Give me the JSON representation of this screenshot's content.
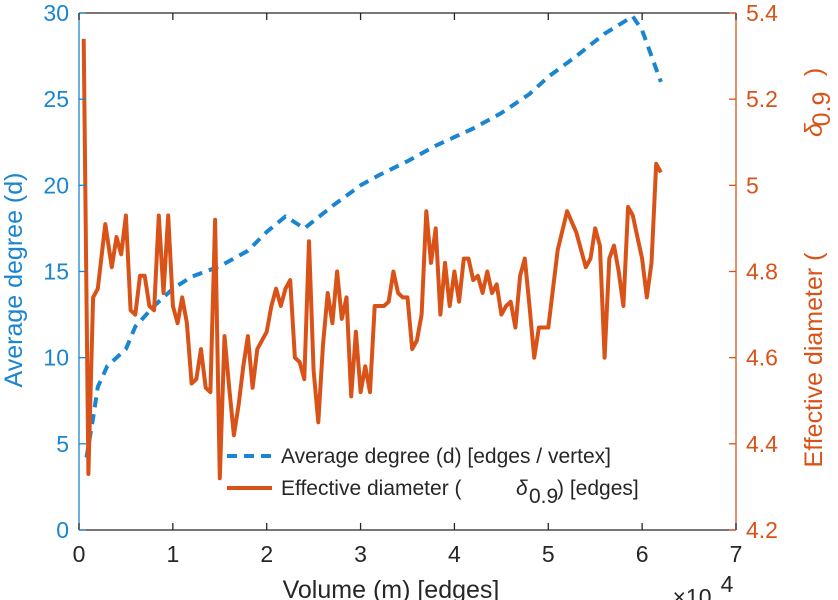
{
  "chart_data": {
    "type": "line",
    "xlabel": "Volume (m) [edges]",
    "x_exponent_label": "×10",
    "x_exponent_power": "4",
    "xlim": [
      0,
      7
    ],
    "x_ticks": [
      "0",
      "1",
      "2",
      "3",
      "4",
      "5",
      "6",
      "7"
    ],
    "left_axis": {
      "label": "Average degree (d)",
      "ylim": [
        0,
        30
      ],
      "ticks": [
        "0",
        "5",
        "10",
        "15",
        "20",
        "25",
        "30"
      ],
      "color": "#1a85d0"
    },
    "right_axis": {
      "label": "Effective diameter (",
      "label_symbol": "δ",
      "label_subscript": "0.9",
      "label_close": ")",
      "ylim": [
        4.2,
        5.4
      ],
      "ticks": [
        "4.2",
        "4.4",
        "4.6",
        "4.8",
        "5",
        "5.2",
        "5.4"
      ],
      "color": "#d95319"
    },
    "series": [
      {
        "name": "Average degree (d) [edges / vertex]",
        "axis": "left",
        "style": "dashed",
        "color": "#1a85d0",
        "x": [
          0.08,
          0.15,
          0.2,
          0.3,
          0.4,
          0.5,
          0.6,
          0.8,
          1.0,
          1.2,
          1.5,
          1.8,
          2.0,
          2.2,
          2.4,
          2.7,
          3.0,
          3.2,
          3.5,
          3.8,
          4.0,
          4.2,
          4.5,
          4.8,
          5.0,
          5.3,
          5.6,
          5.9,
          6.0,
          6.2
        ],
        "values": [
          4.2,
          6.5,
          8.3,
          9.5,
          10.0,
          10.5,
          11.8,
          13.0,
          14.0,
          14.7,
          15.3,
          16.2,
          17.3,
          18.2,
          17.5,
          18.8,
          20.0,
          20.6,
          21.4,
          22.3,
          22.8,
          23.3,
          24.2,
          25.3,
          26.3,
          27.5,
          28.8,
          29.8,
          29.0,
          26.0
        ]
      },
      {
        "name": "Effective diameter (",
        "name_symbol": "δ",
        "name_subscript": "0.9",
        "name_suffix": ") [edges]",
        "axis": "right",
        "style": "solid",
        "color": "#d95319",
        "x": [
          0.05,
          0.1,
          0.15,
          0.2,
          0.28,
          0.35,
          0.4,
          0.45,
          0.5,
          0.55,
          0.6,
          0.65,
          0.7,
          0.75,
          0.8,
          0.85,
          0.9,
          0.95,
          1.0,
          1.05,
          1.1,
          1.15,
          1.2,
          1.25,
          1.3,
          1.35,
          1.4,
          1.45,
          1.5,
          1.55,
          1.6,
          1.65,
          1.7,
          1.75,
          1.8,
          1.85,
          1.9,
          1.95,
          2.0,
          2.05,
          2.1,
          2.15,
          2.2,
          2.25,
          2.3,
          2.35,
          2.4,
          2.45,
          2.5,
          2.55,
          2.6,
          2.65,
          2.7,
          2.75,
          2.8,
          2.85,
          2.9,
          2.95,
          3.0,
          3.05,
          3.1,
          3.15,
          3.2,
          3.25,
          3.3,
          3.35,
          3.4,
          3.45,
          3.5,
          3.55,
          3.6,
          3.65,
          3.7,
          3.75,
          3.8,
          3.85,
          3.9,
          3.95,
          4.0,
          4.05,
          4.1,
          4.15,
          4.2,
          4.25,
          4.3,
          4.35,
          4.4,
          4.45,
          4.5,
          4.55,
          4.6,
          4.65,
          4.7,
          4.75,
          4.8,
          4.85,
          4.9,
          5.0,
          5.1,
          5.2,
          5.3,
          5.35,
          5.4,
          5.45,
          5.5,
          5.55,
          5.6,
          5.65,
          5.7,
          5.75,
          5.8,
          5.85,
          5.9,
          5.95,
          6.0,
          6.05,
          6.1,
          6.15,
          6.2
        ],
        "values": [
          5.34,
          4.33,
          4.74,
          4.76,
          4.91,
          4.81,
          4.88,
          4.84,
          4.93,
          4.71,
          4.7,
          4.79,
          4.79,
          4.72,
          4.71,
          4.93,
          4.75,
          4.93,
          4.72,
          4.68,
          4.74,
          4.68,
          4.54,
          4.55,
          4.62,
          4.53,
          4.52,
          4.92,
          4.32,
          4.65,
          4.53,
          4.42,
          4.49,
          4.58,
          4.65,
          4.53,
          4.62,
          4.64,
          4.66,
          4.72,
          4.76,
          4.72,
          4.76,
          4.78,
          4.6,
          4.59,
          4.55,
          4.87,
          4.57,
          4.45,
          4.63,
          4.75,
          4.68,
          4.8,
          4.69,
          4.74,
          4.51,
          4.66,
          4.52,
          4.58,
          4.52,
          4.72,
          4.72,
          4.72,
          4.73,
          4.8,
          4.75,
          4.74,
          4.74,
          4.62,
          4.64,
          4.7,
          4.94,
          4.82,
          4.9,
          4.7,
          4.82,
          4.72,
          4.8,
          4.73,
          4.83,
          4.83,
          4.78,
          4.79,
          4.75,
          4.8,
          4.75,
          4.77,
          4.7,
          4.72,
          4.73,
          4.67,
          4.79,
          4.83,
          4.72,
          4.6,
          4.67,
          4.67,
          4.85,
          4.94,
          4.89,
          4.85,
          4.81,
          4.83,
          4.9,
          4.86,
          4.6,
          4.83,
          4.86,
          4.8,
          4.72,
          4.95,
          4.93,
          4.88,
          4.83,
          4.74,
          4.82,
          5.05,
          5.03
        ]
      }
    ],
    "legend_position": "lower-center"
  }
}
